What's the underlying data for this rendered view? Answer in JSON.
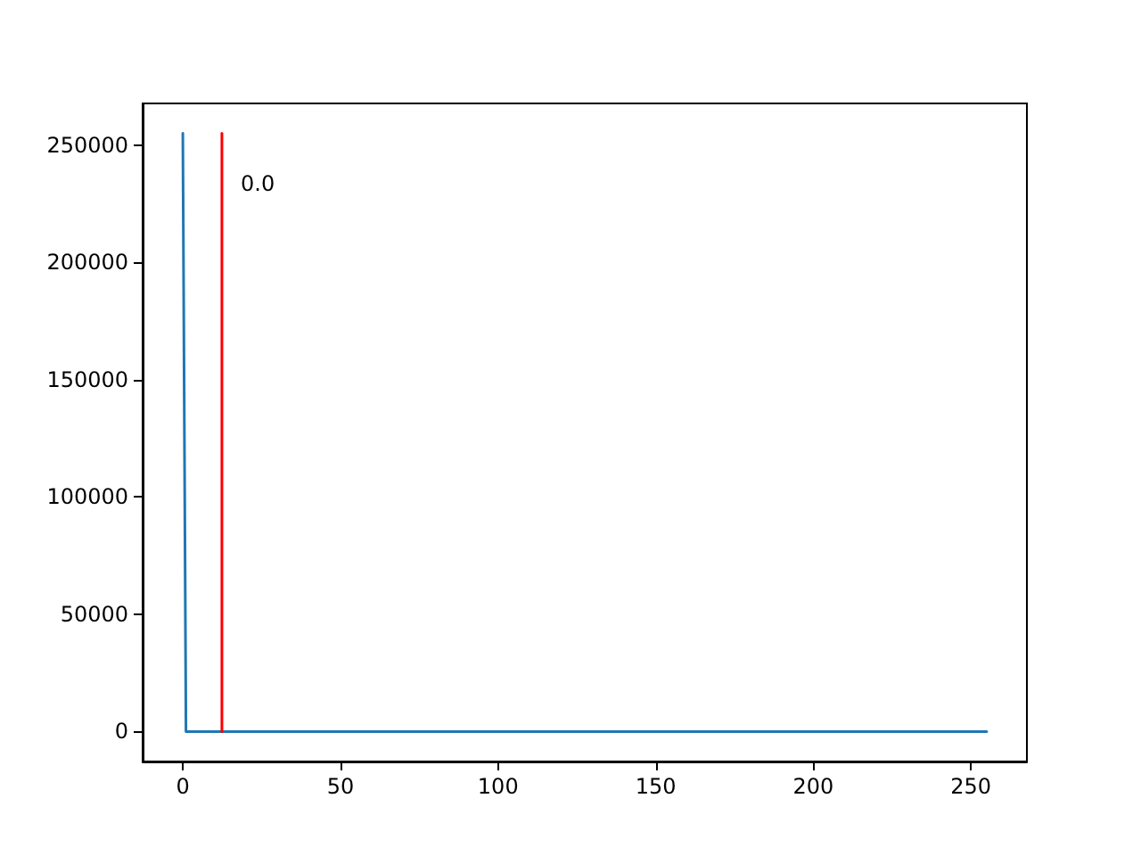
{
  "chart_data": {
    "type": "line",
    "series": [
      {
        "color": "#1f77b4",
        "x": [
          0,
          1,
          255
        ],
        "values": [
          255000,
          0,
          0
        ]
      },
      {
        "type": "line",
        "color": "#ff0000",
        "x": [
          12.4,
          12.4
        ],
        "values": [
          0,
          255000
        ]
      }
    ],
    "annotations": [
      "0.0"
    ],
    "xlim": [
      -12.75,
      267.75
    ],
    "xticks": [
      0,
      50,
      100,
      150,
      200,
      250
    ],
    "ylim": [
      -12750,
      267750
    ],
    "yticks": [
      0,
      50000,
      100000,
      150000,
      200000,
      250000
    ],
    "marker": "none",
    "line_style": "solid"
  }
}
